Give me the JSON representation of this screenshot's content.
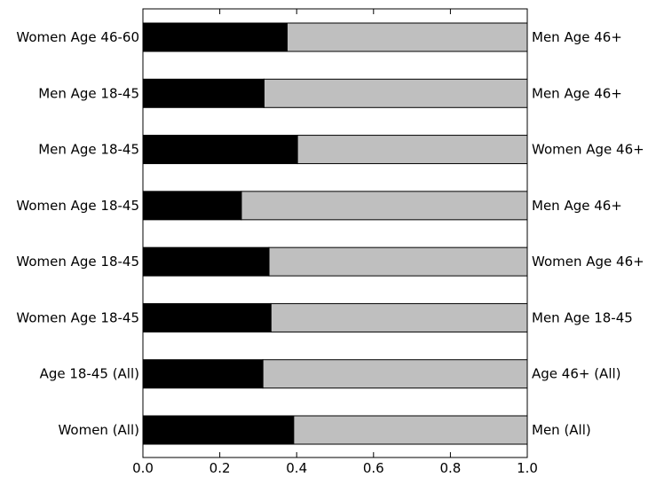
{
  "chart_data": {
    "type": "bar",
    "orientation": "horizontal",
    "stacked": true,
    "categories_left": [
      "Women Age 46-60",
      "Men Age 18-45",
      "Men Age 18-45",
      "Women Age 18-45",
      "Women Age 18-45",
      "Women Age 18-45",
      "Age 18-45 (All)",
      "Women (All)"
    ],
    "categories_right": [
      "Men Age 46+",
      "Men Age 46+",
      "Women Age 46+",
      "Men Age 46+",
      "Women Age 46+",
      "Men Age 18-45",
      "Age 46+ (All)",
      "Men (All)"
    ],
    "values": [
      0.375,
      0.315,
      0.402,
      0.256,
      0.328,
      0.333,
      0.312,
      0.392
    ],
    "xlim": [
      0,
      1
    ],
    "xticks": [
      0.0,
      0.2,
      0.4,
      0.6,
      0.8,
      1.0
    ],
    "xtick_labels": [
      "0.0",
      "0.2",
      "0.4",
      "0.6",
      "0.8",
      "1.0"
    ],
    "colors": {
      "left": "#000000",
      "right": "#bfbfbf",
      "frame": "#000000"
    },
    "grid": false,
    "title": "",
    "xlabel": "",
    "ylabel": ""
  }
}
